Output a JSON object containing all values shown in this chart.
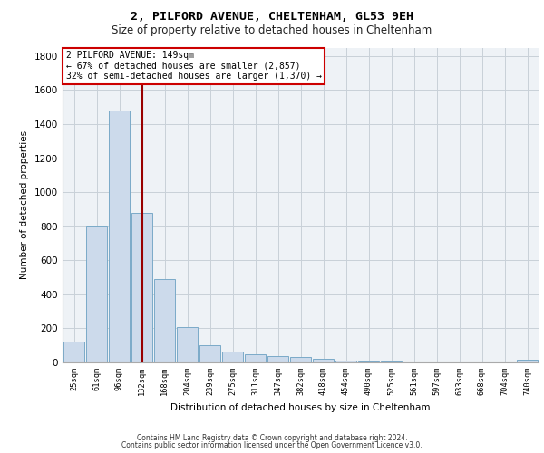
{
  "title1": "2, PILFORD AVENUE, CHELTENHAM, GL53 9EH",
  "title2": "Size of property relative to detached houses in Cheltenham",
  "xlabel": "Distribution of detached houses by size in Cheltenham",
  "ylabel": "Number of detached properties",
  "bar_color": "#ccdaeb",
  "bar_edgecolor": "#7aaac8",
  "categories": [
    "25sqm",
    "61sqm",
    "96sqm",
    "132sqm",
    "168sqm",
    "204sqm",
    "239sqm",
    "275sqm",
    "311sqm",
    "347sqm",
    "382sqm",
    "418sqm",
    "454sqm",
    "490sqm",
    "525sqm",
    "561sqm",
    "597sqm",
    "633sqm",
    "668sqm",
    "704sqm",
    "740sqm"
  ],
  "values": [
    125,
    800,
    1480,
    880,
    490,
    205,
    100,
    65,
    50,
    38,
    30,
    22,
    10,
    5,
    4,
    2,
    1,
    1,
    1,
    1,
    15
  ],
  "vline_x": 3.0,
  "vline_color": "#990000",
  "annotation_text_line1": "2 PILFORD AVENUE: 149sqm",
  "annotation_text_line2": "← 67% of detached houses are smaller (2,857)",
  "annotation_text_line3": "32% of semi-detached houses are larger (1,370) →",
  "annotation_box_color": "#ffffff",
  "annotation_border_color": "#cc0000",
  "ylim": [
    0,
    1850
  ],
  "yticks": [
    0,
    200,
    400,
    600,
    800,
    1000,
    1200,
    1400,
    1600,
    1800
  ],
  "footer1": "Contains HM Land Registry data © Crown copyright and database right 2024.",
  "footer2": "Contains public sector information licensed under the Open Government Licence v3.0.",
  "grid_color": "#c8d0d8",
  "background_color": "#eef2f6"
}
